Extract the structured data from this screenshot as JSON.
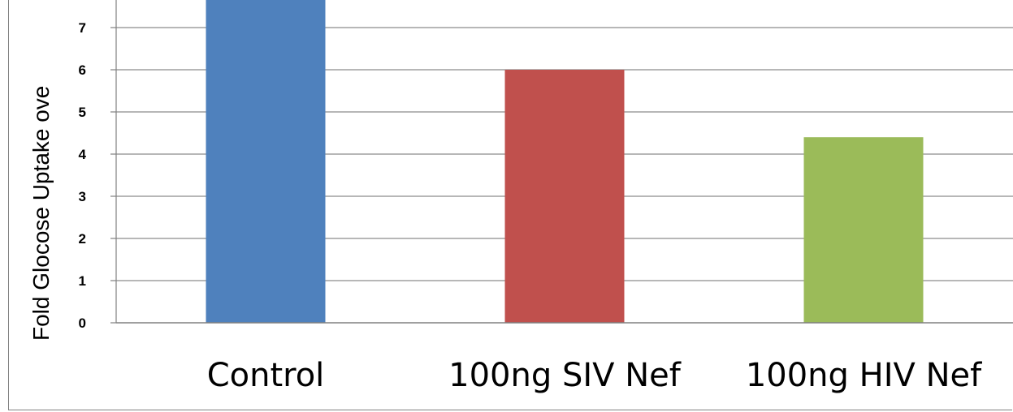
{
  "chart_data": {
    "type": "bar",
    "ylabel": "Fold Glocose Uptake ove",
    "categories": [
      "Control",
      "100ng SIV Nef",
      "100ng HIV Nef"
    ],
    "values": [
      8.0,
      6.0,
      4.4
    ],
    "colors": [
      "#4F81BD",
      "#C0504D",
      "#9BBB59"
    ],
    "yticks": [
      "0",
      "1",
      "2",
      "3",
      "4",
      "5",
      "6",
      "7"
    ],
    "ylim": [
      0,
      7.6
    ],
    "grid": true
  }
}
